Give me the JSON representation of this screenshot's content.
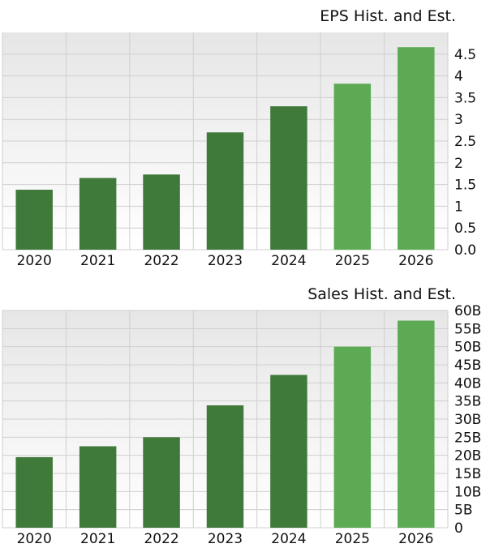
{
  "colors": {
    "historical_bar": "#3f7a3b",
    "estimate_bar": "#5cab54",
    "grid": "#cfcfcf",
    "plot_bg_top": "#e6e6e6",
    "plot_bg_bottom": "#ffffff"
  },
  "chart_data": [
    {
      "type": "bar",
      "title": "EPS Hist. and Est.",
      "categories": [
        "2020",
        "2021",
        "2022",
        "2023",
        "2024",
        "2025",
        "2026"
      ],
      "values": [
        1.38,
        1.65,
        1.73,
        2.7,
        3.3,
        3.82,
        4.66
      ],
      "estimate_from_index": 5,
      "ylim": [
        0,
        5
      ],
      "yticks": [
        0,
        0.5,
        1,
        1.5,
        2,
        2.5,
        3,
        3.5,
        4,
        4.5
      ],
      "ytick_labels": [
        "0.0",
        "0.5",
        "1",
        "1.5",
        "2",
        "2.5",
        "3",
        "3.5",
        "4",
        "4.5"
      ],
      "y_axis_position": "right",
      "grid": true
    },
    {
      "type": "bar",
      "title": "Sales Hist. and Est.",
      "categories": [
        "2020",
        "2021",
        "2022",
        "2023",
        "2024",
        "2025",
        "2026"
      ],
      "values": [
        19.5,
        22.5,
        25.0,
        33.8,
        42.2,
        50.0,
        57.2
      ],
      "estimate_from_index": 5,
      "ylim": [
        0,
        60
      ],
      "yticks": [
        0,
        5,
        10,
        15,
        20,
        25,
        30,
        35,
        40,
        45,
        50,
        55,
        60
      ],
      "ytick_labels": [
        "0",
        "5B",
        "10B",
        "15B",
        "20B",
        "25B",
        "30B",
        "35B",
        "40B",
        "45B",
        "50B",
        "55B",
        "60B"
      ],
      "y_axis_position": "right",
      "grid": true
    }
  ]
}
